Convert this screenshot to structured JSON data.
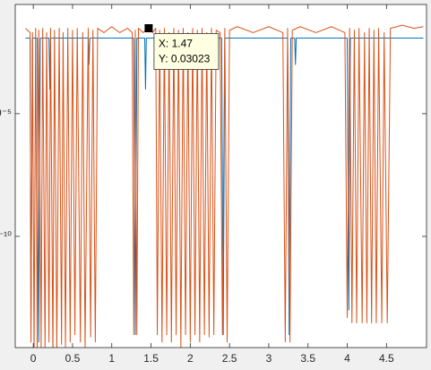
{
  "chart_data": {
    "type": "line",
    "log_y": true,
    "grid": false,
    "xlim": [
      -0.23,
      5.01
    ],
    "ylim": [
      2.95e-15,
      0.28
    ],
    "xticks": [
      0,
      0.5,
      1,
      1.5,
      2,
      2.5,
      3,
      3.5,
      4,
      4.5
    ],
    "yticks": [
      {
        "value": 1e-10,
        "label": "10⁻¹⁰"
      },
      {
        "value": 1e-05,
        "label": "10⁻⁵"
      }
    ],
    "series": [
      {
        "color": "#0072bd",
        "x": [
          -0.1,
          -0.04,
          -0.03,
          -0.01,
          0.05,
          0.07,
          0.09,
          0.2,
          0.21,
          0.22,
          0.7,
          0.71,
          0.72,
          1.28,
          1.3,
          1.32,
          1.42,
          1.43,
          1.44,
          2.4,
          2.42,
          2.44,
          3.24,
          3.26,
          3.28,
          3.33,
          3.34,
          3.35,
          4.0,
          4.02,
          4.04,
          4.97
        ],
        "values": [
          0.012,
          0.012,
          5e-15,
          0.012,
          0.012,
          5e-15,
          0.012,
          0.012,
          0.0001,
          0.012,
          0.012,
          0.001,
          0.012,
          0.012,
          1e-14,
          0.012,
          0.012,
          0.0001,
          0.012,
          0.012,
          1e-14,
          0.012,
          0.012,
          1e-14,
          0.012,
          0.012,
          0.001,
          0.012,
          0.012,
          1e-13,
          0.012,
          0.012
        ]
      },
      {
        "color": "#d95319",
        "x": [
          -0.1,
          -0.04,
          -0.03,
          -0.01,
          0.01,
          0.03,
          0.05,
          0.07,
          0.1,
          0.12,
          0.15,
          0.17,
          0.2,
          0.22,
          0.25,
          0.27,
          0.3,
          0.33,
          0.36,
          0.38,
          0.41,
          0.44,
          0.47,
          0.5,
          0.53,
          0.56,
          0.6,
          0.63,
          0.66,
          0.7,
          0.73,
          0.76,
          0.79,
          0.82,
          0.9,
          1.0,
          1.1,
          1.2,
          1.26,
          1.28,
          1.3,
          1.32,
          1.34,
          1.4,
          1.47,
          1.52,
          1.56,
          1.58,
          1.61,
          1.64,
          1.67,
          1.7,
          1.73,
          1.76,
          1.79,
          1.82,
          1.85,
          1.88,
          1.91,
          1.94,
          1.97,
          2.0,
          2.03,
          2.06,
          2.09,
          2.12,
          2.15,
          2.18,
          2.21,
          2.24,
          2.27,
          2.3,
          2.33,
          2.38,
          2.41,
          2.44,
          2.47,
          2.5,
          2.6,
          2.8,
          3.0,
          3.18,
          3.21,
          3.24,
          3.27,
          3.3,
          3.4,
          3.6,
          3.8,
          3.97,
          4.0,
          4.03,
          4.06,
          4.09,
          4.12,
          4.15,
          4.19,
          4.22,
          4.25,
          4.28,
          4.31,
          4.34,
          4.37,
          4.4,
          4.44,
          4.47,
          4.51,
          4.55,
          4.7,
          4.85,
          4.97
        ],
        "values": [
          0.03,
          0.02,
          5e-15,
          0.02,
          1e-15,
          0.03,
          2e-15,
          0.025,
          3e-15,
          0.03,
          2e-15,
          0.02,
          5e-15,
          0.03,
          1e-15,
          0.025,
          2e-15,
          0.03,
          4e-15,
          0.02,
          3e-15,
          0.03,
          5e-15,
          0.025,
          1e-14,
          0.03,
          5e-15,
          0.02,
          3e-15,
          0.03,
          8e-15,
          0.025,
          5e-15,
          0.03,
          0.02,
          0.035,
          0.02,
          0.03,
          0.02,
          1e-14,
          0.025,
          1e-14,
          0.03,
          0.02,
          0.03023,
          0.02,
          0.03,
          1e-14,
          0.025,
          5e-15,
          0.03,
          1e-14,
          0.02,
          5e-15,
          0.03,
          1e-14,
          0.025,
          3e-15,
          0.03,
          1e-14,
          0.02,
          5e-15,
          0.03,
          1e-14,
          0.025,
          5e-15,
          0.03,
          1e-14,
          0.02,
          8e-15,
          0.03,
          1e-14,
          0.025,
          0.02,
          1e-14,
          0.03,
          5e-15,
          0.025,
          0.035,
          0.02,
          0.035,
          0.02,
          5e-15,
          0.03,
          5e-15,
          0.025,
          0.035,
          0.02,
          0.035,
          0.02,
          5e-14,
          0.03,
          3e-14,
          0.025,
          3e-14,
          0.03,
          3e-14,
          0.02,
          3e-14,
          0.03,
          3e-14,
          0.025,
          3e-14,
          0.03,
          3e-14,
          0.02,
          3e-14,
          0.03,
          0.04,
          0.03,
          0.035
        ]
      }
    ],
    "datatip": {
      "x": 1.47,
      "y": 0.03023,
      "x_label": "X: 1.47",
      "y_label": "Y: 0.03023"
    }
  }
}
